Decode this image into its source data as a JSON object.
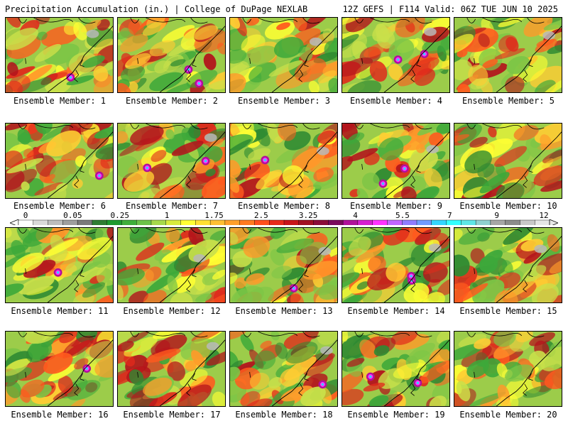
{
  "header": {
    "title_left": "Precipitation Accumulation (in.) | College of DuPage NEXLAB",
    "title_right": "12Z GEFS | F114 Valid: 06Z TUE JUN 10 2025"
  },
  "caption_prefix": "Ensemble Member: ",
  "members": [
    {
      "caption": "Ensemble Member: 1",
      "member": 1
    },
    {
      "caption": "Ensemble Member: 2",
      "member": 2
    },
    {
      "caption": "Ensemble Member: 3",
      "member": 3
    },
    {
      "caption": "Ensemble Member: 4",
      "member": 4
    },
    {
      "caption": "Ensemble Member: 5",
      "member": 5
    },
    {
      "caption": "Ensemble Member: 6",
      "member": 6
    },
    {
      "caption": "Ensemble Member: 7",
      "member": 7
    },
    {
      "caption": "Ensemble Member: 8",
      "member": 8
    },
    {
      "caption": "Ensemble Member: 9",
      "member": 9
    },
    {
      "caption": "Ensemble Member: 10",
      "member": 10
    },
    {
      "caption": "Ensemble Member: 11",
      "member": 11
    },
    {
      "caption": "Ensemble Member: 12",
      "member": 12
    },
    {
      "caption": "Ensemble Member: 13",
      "member": 13
    },
    {
      "caption": "Ensemble Member: 14",
      "member": 14
    },
    {
      "caption": "Ensemble Member: 15",
      "member": 15
    },
    {
      "caption": "Ensemble Member: 16",
      "member": 16
    },
    {
      "caption": "Ensemble Member: 17",
      "member": 17
    },
    {
      "caption": "Ensemble Member: 18",
      "member": 18
    },
    {
      "caption": "Ensemble Member: 19",
      "member": 19
    },
    {
      "caption": "Ensemble Member: 20",
      "member": 20
    }
  ],
  "colorbar": {
    "labels": [
      "0",
      "0.05",
      "0.25",
      "1",
      "1.75",
      "2.5",
      "3.25",
      "4",
      "5.5",
      "7",
      "9",
      "12"
    ],
    "colors": [
      "#ffffff",
      "#d9d9d9",
      "#bdbdbd",
      "#9e9e9e",
      "#7a7a7a",
      "#2f7d32",
      "#1e9a2d",
      "#3fae3a",
      "#6cc24a",
      "#a6d94a",
      "#d8ea3c",
      "#ffff33",
      "#ffe033",
      "#ffbf33",
      "#ff9f2a",
      "#ff7a22",
      "#ff4f1e",
      "#e82a1c",
      "#c8141b",
      "#a10f24",
      "#8b0b3a",
      "#7a0a5c",
      "#b0109a",
      "#d61fd0",
      "#ff33ff",
      "#c066ff",
      "#8f7dff",
      "#6f9cff",
      "#33d6ff",
      "#33ffff",
      "#5ee6e6",
      "#8fd0d0",
      "#a6a6a6",
      "#8c8c8c",
      "#c8c8c8",
      "#e6e6e6"
    ]
  }
}
